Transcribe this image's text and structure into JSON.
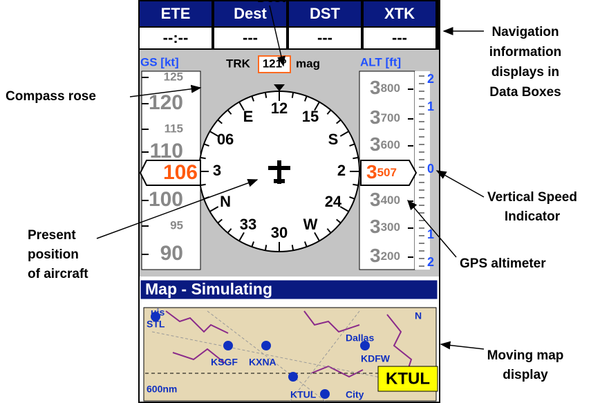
{
  "data_boxes": [
    {
      "label": "ETE",
      "value": "--:--"
    },
    {
      "label": "Dest",
      "value": "---"
    },
    {
      "label": "DST",
      "value": "---"
    },
    {
      "label": "XTK",
      "value": "---"
    }
  ],
  "instruments": {
    "gs_label": "GS [kt]",
    "trk_label": "TRK",
    "trk_value": "121º",
    "trk_unit": "mag",
    "alt_label": "ALT [ft]"
  },
  "speed_tape": {
    "marks": [
      "125",
      "120",
      "115",
      "110",
      "100",
      "95",
      "90"
    ],
    "current": "106"
  },
  "compass": {
    "labels": [
      "12",
      "15",
      "S",
      "2",
      "24",
      "W",
      "30",
      "33",
      "N",
      "3",
      "06",
      "E"
    ]
  },
  "altitude_tape": {
    "marks": [
      {
        "big": "3",
        "small": "800"
      },
      {
        "big": "3",
        "small": "700"
      },
      {
        "big": "3",
        "small": "600"
      },
      {
        "big": "3",
        "small": "400"
      },
      {
        "big": "3",
        "small": "300"
      },
      {
        "big": "3",
        "small": "200"
      }
    ],
    "current": {
      "big": "3",
      "small": "507"
    }
  },
  "vsi": {
    "labels": [
      "2",
      "1",
      "0",
      "1",
      "2"
    ]
  },
  "map": {
    "title": "Map - Simulating",
    "labels": [
      "uis",
      "STL",
      "KSGF",
      "KXNA",
      "Dallas",
      "KDFW",
      "N",
      "600nm",
      "KTUL",
      "City"
    ],
    "highlight": "KTUL"
  },
  "annotations": {
    "top": "Dest",
    "nav": [
      "Navigation",
      "information",
      "displays in",
      "Data Boxes"
    ],
    "compass": "Compass rose",
    "vsi": [
      "Vertical Speed",
      "Indicator"
    ],
    "position": [
      "Present",
      "position",
      "of aircraft"
    ],
    "altimeter": "GPS altimeter",
    "map": [
      "Moving map",
      "display"
    ]
  }
}
